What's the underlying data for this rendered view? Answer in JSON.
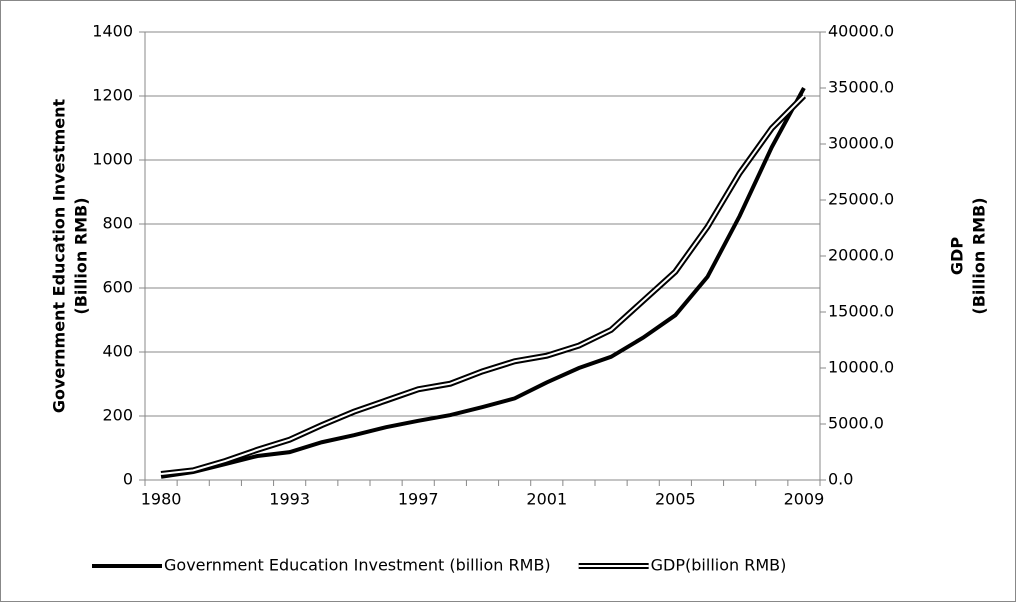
{
  "chart_data": {
    "type": "line",
    "categories": [
      "1980",
      null,
      null,
      null,
      "1993",
      null,
      null,
      null,
      "1997",
      null,
      null,
      null,
      "2001",
      null,
      null,
      null,
      "2005",
      null,
      null,
      null,
      "2009"
    ],
    "series": [
      {
        "name": "Government Education Investment (billion RMB)",
        "color": "#000000",
        "style": "solid",
        "values": [
          10,
          25,
          50,
          75,
          87,
          118,
          140,
          165,
          185,
          203,
          228,
          255,
          305,
          350,
          385,
          445,
          515,
          635,
          825,
          1040,
          1225
        ]
      },
      {
        "name": "GDP(billion RMB)",
        "color": "#000000",
        "style": "double",
        "axis": "y2",
        "values": [
          540,
          860,
          1700,
          2700,
          3600,
          4900,
          6100,
          7100,
          8100,
          8600,
          9700,
          10600,
          11100,
          12000,
          13400,
          16000,
          18600,
          22600,
          27400,
          31400,
          34300
        ]
      }
    ],
    "ylabel": [
      "Government Education Investment",
      "(Billion RMB)"
    ],
    "y2label": [
      "GDP",
      "(Billion RMB)"
    ],
    "ylim": [
      0,
      1400
    ],
    "yticks": [
      0,
      200,
      400,
      600,
      800,
      1000,
      1200,
      1400
    ],
    "y2lim": [
      0,
      40000
    ],
    "y2ticks": [
      {
        "value": 0,
        "label": "0.0"
      },
      {
        "value": 5000,
        "label": "5000.0"
      },
      {
        "value": 10000,
        "label": "10000.0"
      },
      {
        "value": 15000,
        "label": "15000.0"
      },
      {
        "value": 20000,
        "label": "20000.0"
      },
      {
        "value": 25000,
        "label": "25000.0"
      },
      {
        "value": 30000,
        "label": "30000.0"
      },
      {
        "value": 35000,
        "label": "35000.0"
      },
      {
        "value": 40000,
        "label": "40000.0"
      }
    ],
    "grid": true,
    "legend": "bottom"
  }
}
